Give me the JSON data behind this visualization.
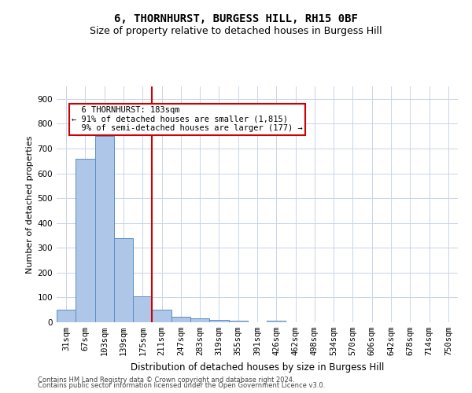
{
  "title": "6, THORNHURST, BURGESS HILL, RH15 0BF",
  "subtitle": "Size of property relative to detached houses in Burgess Hill",
  "xlabel": "Distribution of detached houses by size in Burgess Hill",
  "ylabel": "Number of detached properties",
  "footer_line1": "Contains HM Land Registry data © Crown copyright and database right 2024.",
  "footer_line2": "Contains public sector information licensed under the Open Government Licence v3.0.",
  "bar_color": "#aec6e8",
  "bar_edge_color": "#5a8fc2",
  "vline_color": "#cc0000",
  "vline_x_index": 4.5,
  "annotation_text": "  6 THORNHURST: 183sqm\n← 91% of detached houses are smaller (1,815)\n  9% of semi-detached houses are larger (177) →",
  "annotation_box_color": "#cc0000",
  "categories": [
    "31sqm",
    "67sqm",
    "103sqm",
    "139sqm",
    "175sqm",
    "211sqm",
    "247sqm",
    "283sqm",
    "319sqm",
    "355sqm",
    "391sqm",
    "426sqm",
    "462sqm",
    "498sqm",
    "534sqm",
    "570sqm",
    "606sqm",
    "642sqm",
    "678sqm",
    "714sqm",
    "750sqm"
  ],
  "values": [
    50,
    660,
    750,
    340,
    105,
    50,
    22,
    15,
    10,
    5,
    0,
    5,
    0,
    0,
    0,
    0,
    0,
    0,
    0,
    0,
    0
  ],
  "ylim": [
    0,
    950
  ],
  "yticks": [
    0,
    100,
    200,
    300,
    400,
    500,
    600,
    700,
    800,
    900
  ],
  "bg_color": "#ffffff",
  "grid_color": "#c8d4e8",
  "title_fontsize": 10,
  "subtitle_fontsize": 9,
  "ylabel_fontsize": 8,
  "xlabel_fontsize": 8.5,
  "tick_fontsize": 7.5,
  "footer_fontsize": 6,
  "annotation_fontsize": 7.5
}
